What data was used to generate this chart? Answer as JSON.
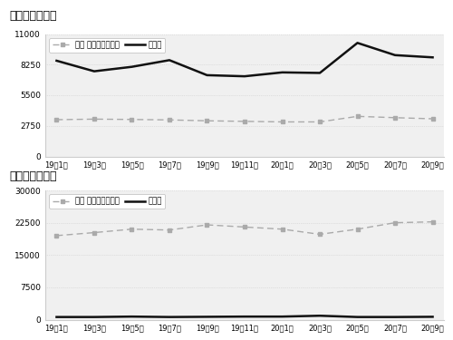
{
  "title1": "【東京エリア】",
  "title2": "【岡山エリア】",
  "x_labels": [
    "19年1月",
    "19年3月",
    "19年5月",
    "19年7月",
    "19年9月",
    "19年11月",
    "20年1月",
    "20年3月",
    "20年5月",
    "20年7月",
    "20年9月"
  ],
  "tokyo_normal": [
    3300,
    3350,
    3320,
    3280,
    3200,
    3150,
    3100,
    3100,
    3600,
    3480,
    3380
  ],
  "tokyo_kyotsu": [
    8600,
    7650,
    8050,
    8650,
    7300,
    7200,
    7550,
    7500,
    10200,
    9100,
    8900
  ],
  "okayama_normal": [
    19500,
    20200,
    21000,
    20800,
    22000,
    21500,
    21000,
    19800,
    21000,
    22500,
    22700
  ],
  "okayama_kyotsu": [
    600,
    600,
    700,
    600,
    650,
    700,
    700,
    900,
    600,
    600,
    650
  ],
  "legend1_label1": "東京 通常の通販番組",
  "legend1_label2": "局通販",
  "legend2_label1": "岡山 通常の通販番組",
  "legend2_label2": "局通販",
  "tokyo_yticks": [
    0,
    2750,
    5500,
    8250,
    11000
  ],
  "okayama_yticks": [
    0,
    7500,
    15000,
    22500,
    30000
  ],
  "bg_color": "#f0f0f0",
  "normal_color": "#aaaaaa",
  "kyotsu_color": "#111111",
  "grid_color": "#cccccc",
  "border_color": "#cccccc"
}
